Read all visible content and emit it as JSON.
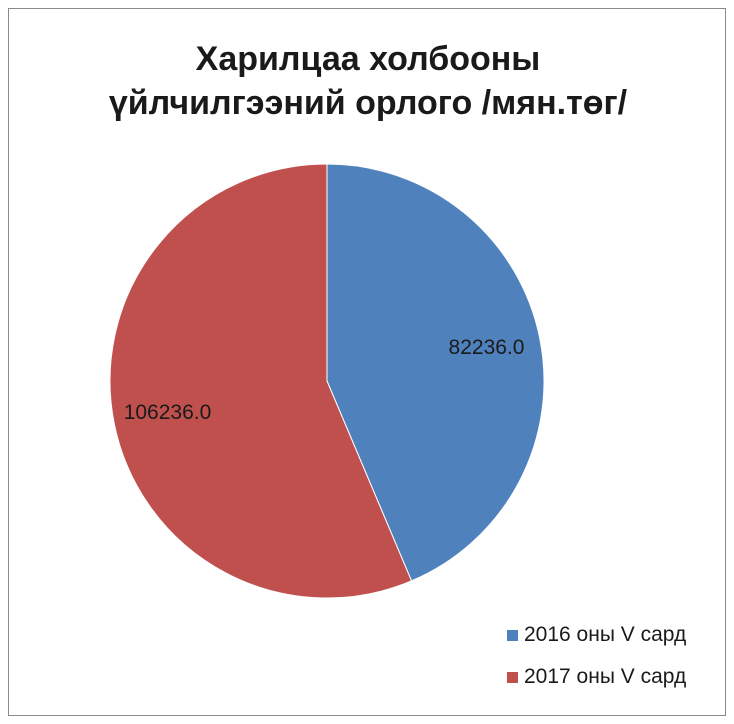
{
  "chart_data": {
    "type": "pie",
    "title": "Харилцаа холбооны үйлчилгээний орлого /мян.төг/",
    "title_lines": [
      "Харилцаа холбооны",
      "үйлчилгээний орлого /мян.төг/"
    ],
    "categories": [
      "2016 оны V сард",
      "2017 оны V сард"
    ],
    "values": [
      82236.0,
      106236.0
    ],
    "data_labels": [
      "82236.0",
      "106236.0"
    ],
    "colors": [
      "#4f81bd",
      "#c0504d"
    ],
    "legend_placement": "bottom-right",
    "start_angle_deg": 0,
    "direction": "clockwise"
  }
}
